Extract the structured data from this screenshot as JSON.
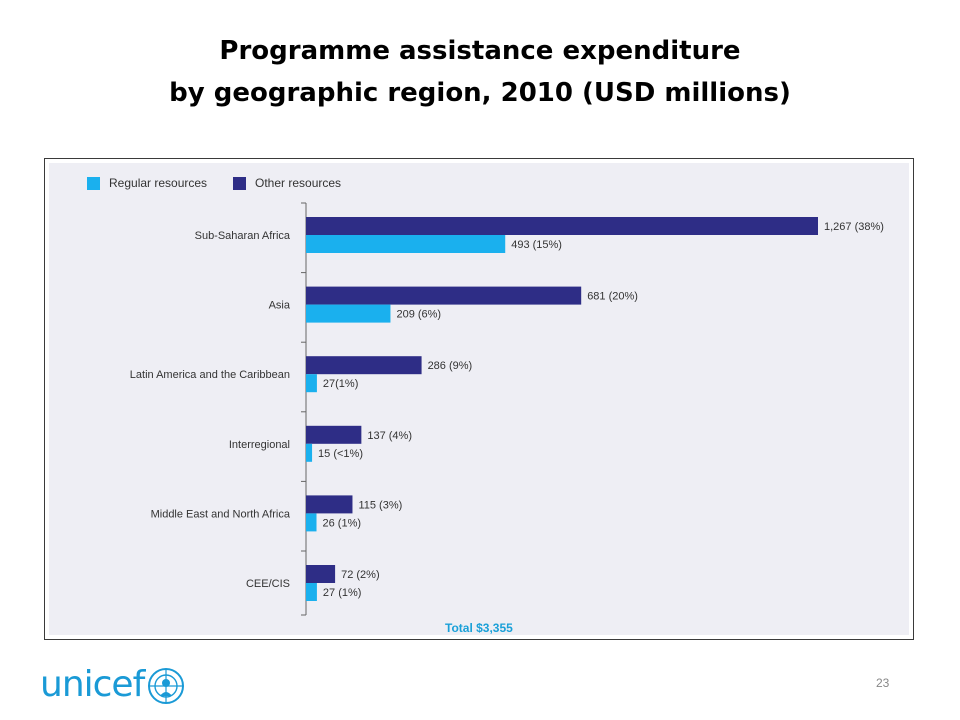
{
  "slide": {
    "title_line1": "Programme assistance expenditure",
    "title_line2": "by geographic region, 2010 (USD millions)",
    "page_number": "23",
    "logo_text": "unicef"
  },
  "chart_data": {
    "type": "bar",
    "orientation": "horizontal",
    "categories": [
      "Sub-Saharan Africa",
      "Asia",
      "Latin America and the Caribbean",
      "Interregional",
      "Middle East and North Africa",
      "CEE/CIS"
    ],
    "series": [
      {
        "name": "Other resources",
        "color": "#2e2d86",
        "values": [
          1267,
          681,
          286,
          137,
          115,
          72
        ],
        "labels": [
          "1,267 (38%)",
          "681 (20%)",
          "286 (9%)",
          "137 (4%)",
          "115 (3%)",
          "72 (2%)"
        ]
      },
      {
        "name": "Regular resources",
        "color": "#1ab0ee",
        "values": [
          493,
          209,
          27,
          15,
          26,
          27
        ],
        "labels": [
          "493 (15%)",
          "209 (6%)",
          "27(1%)",
          "15 (<1%)",
          "26 (1%)",
          "27 (1%)"
        ]
      }
    ],
    "legend": {
      "position": "top-left",
      "items": [
        {
          "label": "Regular resources",
          "color": "#1ab0ee"
        },
        {
          "label": "Other resources",
          "color": "#2e2d86"
        }
      ]
    },
    "total_label": "Total $3,355",
    "xlim": [
      0,
      1267
    ],
    "grid": false
  }
}
